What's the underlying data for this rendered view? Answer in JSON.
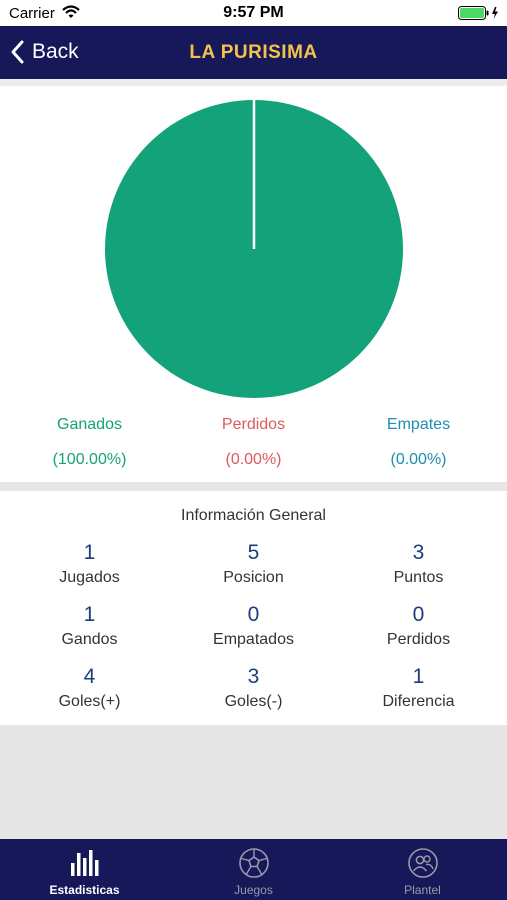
{
  "status_bar": {
    "carrier": "Carrier",
    "time": "9:57 PM"
  },
  "nav": {
    "back_label": "Back",
    "title": "LA PURISIMA"
  },
  "chart_data": {
    "type": "pie",
    "slices": [
      {
        "label": "Ganados",
        "value": 100.0,
        "color": "#14a27a"
      },
      {
        "label": "Perdidos",
        "value": 0.0,
        "color": "#dd5a5a"
      },
      {
        "label": "Empates",
        "value": 0.0,
        "color": "#1b8fb1"
      }
    ]
  },
  "legend": [
    {
      "label": "Ganados",
      "percent": "(100.00%)"
    },
    {
      "label": "Perdidos",
      "percent": "(0.00%)"
    },
    {
      "label": "Empates",
      "percent": "(0.00%)"
    }
  ],
  "info": {
    "title": "Información General",
    "stats": [
      {
        "value": "1",
        "label": "Jugados"
      },
      {
        "value": "5",
        "label": "Posicion"
      },
      {
        "value": "3",
        "label": "Puntos"
      },
      {
        "value": "1",
        "label": "Gandos"
      },
      {
        "value": "0",
        "label": "Empatados"
      },
      {
        "value": "0",
        "label": "Perdidos"
      },
      {
        "value": "4",
        "label": "Goles(+)"
      },
      {
        "value": "3",
        "label": "Goles(-)"
      },
      {
        "value": "1",
        "label": "Diferencia"
      }
    ]
  },
  "tabs": [
    {
      "label": "Estadisticas",
      "icon": "bar-chart-icon",
      "active": true
    },
    {
      "label": "Juegos",
      "icon": "soccer-ball-icon",
      "active": false
    },
    {
      "label": "Plantel",
      "icon": "players-icon",
      "active": false
    }
  ]
}
